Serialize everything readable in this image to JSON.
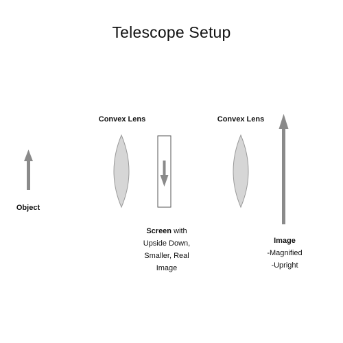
{
  "title": "Telescope Setup",
  "labels": {
    "lens1": "Convex Lens",
    "lens2": "Convex Lens",
    "object": "Object",
    "screen_bold": "Screen",
    "screen_rest": " with",
    "screen_line2": "Upside Down,",
    "screen_line3": "Smaller, Real",
    "screen_line4": "Image",
    "image_bold": "Image",
    "image_line2": "-Magnified",
    "image_line3": "-Upright"
  },
  "colors": {
    "arrow": "#8a8a8a",
    "lens_fill": "#d6d6d6",
    "lens_stroke": "#9a9a9a",
    "screen_stroke": "#555555"
  }
}
